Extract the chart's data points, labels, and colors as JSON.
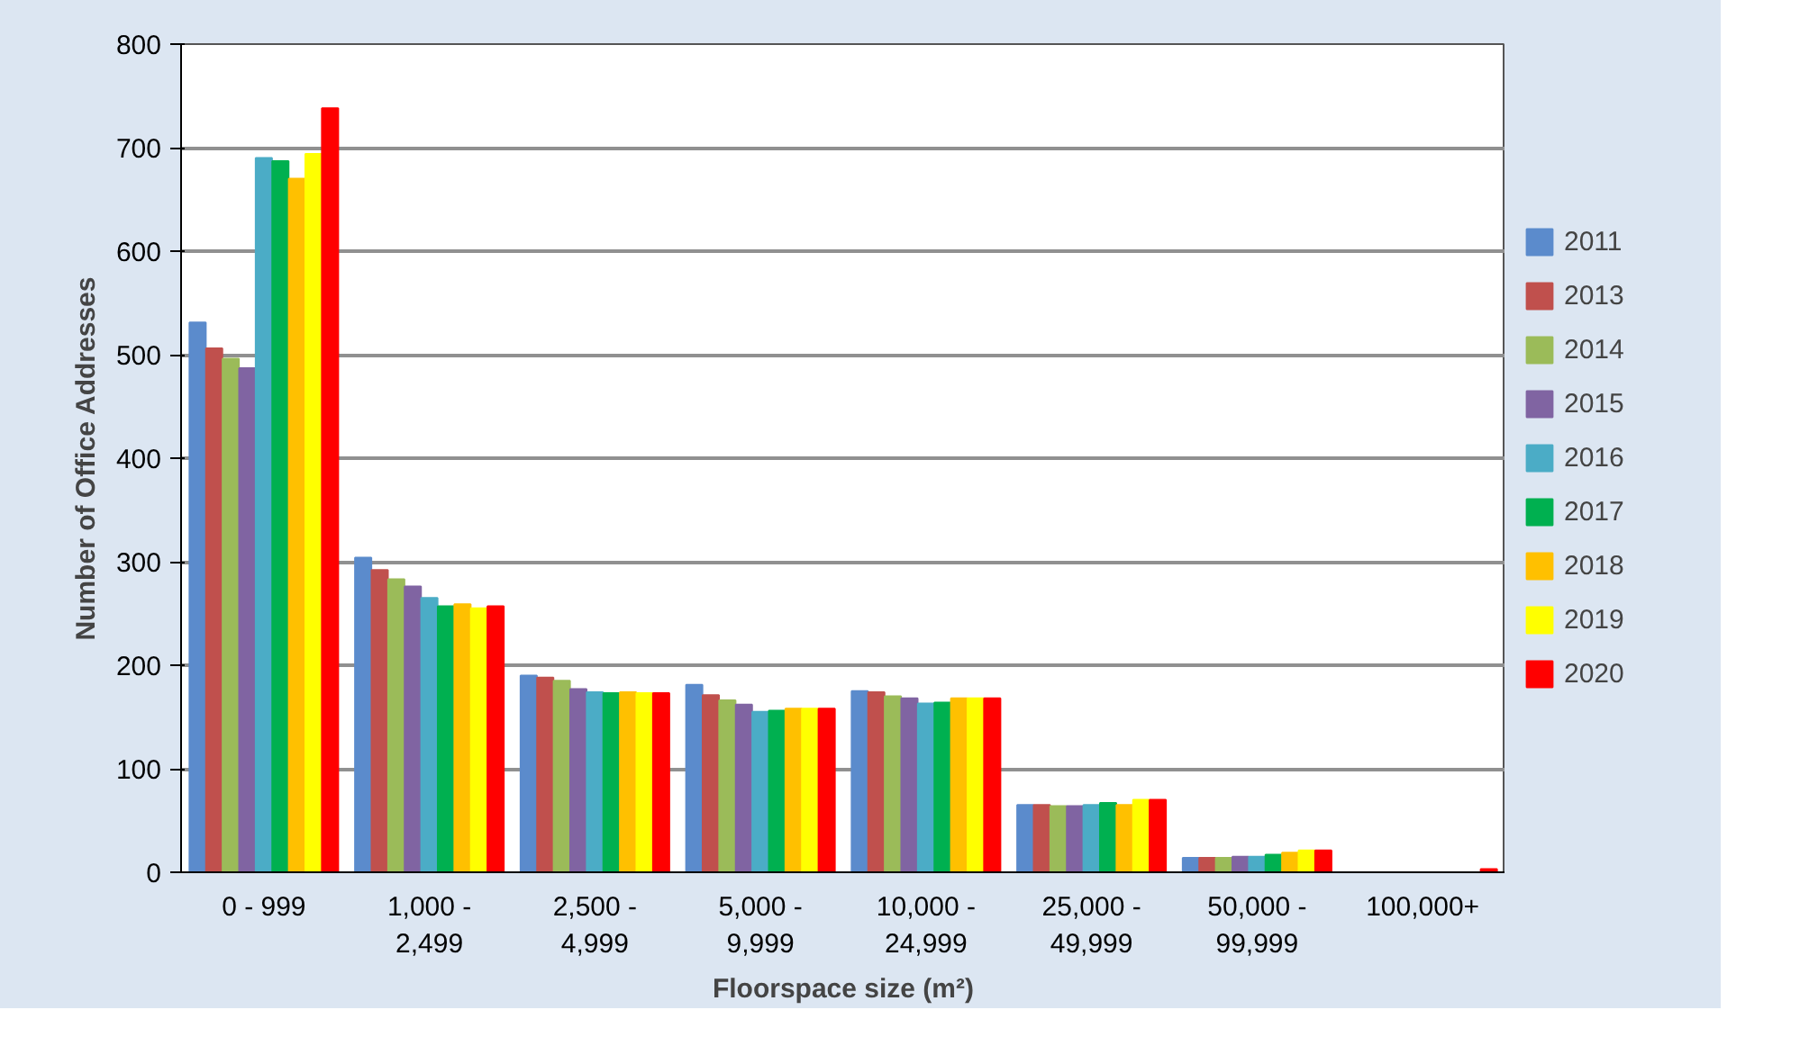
{
  "chart_data": {
    "type": "bar",
    "xlabel": "Floorspace size (m²)",
    "ylabel": "Number of Office Addresses",
    "categories": [
      "0 - 999",
      "1,000 -\n2,499",
      "2,500 -\n4,999",
      "5,000 -\n9,999",
      "10,000 -\n24,999",
      "25,000 -\n49,999",
      "50,000 -\n99,999",
      "100,000+"
    ],
    "series": [
      {
        "name": "2011",
        "color": "#5b8bcc",
        "values": [
          531,
          304,
          190,
          181,
          175,
          65,
          14,
          0
        ]
      },
      {
        "name": "2013",
        "color": "#c0504d",
        "values": [
          506,
          292,
          188,
          171,
          174,
          65,
          14,
          0
        ]
      },
      {
        "name": "2014",
        "color": "#9bbb59",
        "values": [
          496,
          283,
          185,
          166,
          170,
          64,
          14,
          0
        ]
      },
      {
        "name": "2015",
        "color": "#8064a2",
        "values": [
          487,
          276,
          177,
          162,
          168,
          64,
          15,
          0
        ]
      },
      {
        "name": "2016",
        "color": "#4bacc6",
        "values": [
          690,
          265,
          174,
          155,
          163,
          65,
          15,
          0
        ]
      },
      {
        "name": "2017",
        "color": "#00b050",
        "values": [
          687,
          257,
          173,
          156,
          164,
          67,
          17,
          0
        ]
      },
      {
        "name": "2018",
        "color": "#ffc000",
        "values": [
          670,
          259,
          174,
          158,
          168,
          65,
          19,
          0
        ]
      },
      {
        "name": "2019",
        "color": "#ffff00",
        "values": [
          694,
          255,
          173,
          158,
          168,
          70,
          21,
          0
        ]
      },
      {
        "name": "2020",
        "color": "#ff0000",
        "values": [
          738,
          257,
          173,
          158,
          168,
          70,
          21,
          3
        ]
      }
    ],
    "ylim": [
      0,
      800
    ],
    "yticks": [
      0,
      100,
      200,
      300,
      400,
      500,
      600,
      700,
      800
    ],
    "grid": "y",
    "legend": "right"
  }
}
